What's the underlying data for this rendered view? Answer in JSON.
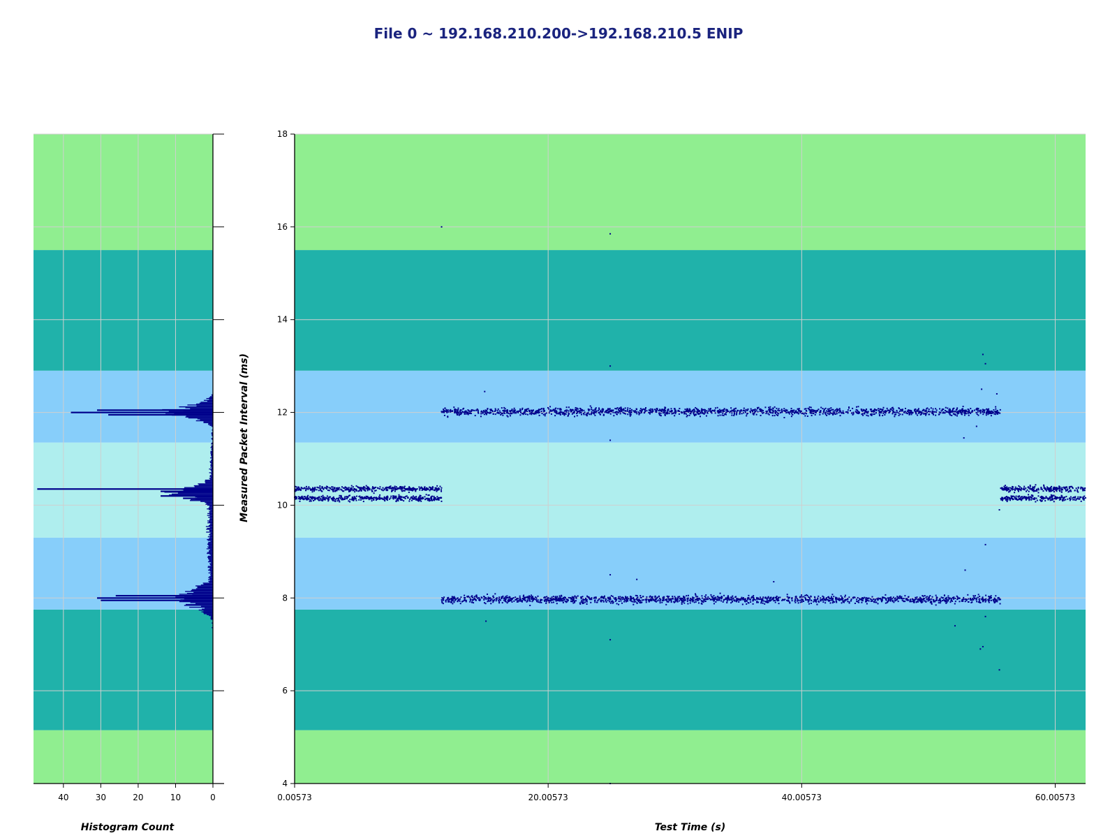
{
  "chart_data": [
    {
      "type": "scatter",
      "title": "File 0 ~ 192.168.210.200->192.168.210.5 ENIP",
      "xlabel": "Test Time (s)",
      "ylabel": "Measured Packet Interval (ms)",
      "xlim": [
        0.00573,
        62.4
      ],
      "ylim": [
        4,
        18
      ],
      "x_ticks": [
        "0.00573",
        "20.00573",
        "40.00573",
        "60.00573"
      ],
      "y_ticks": [
        "4",
        "6",
        "8",
        "10",
        "12",
        "14",
        "16",
        "18"
      ],
      "grid": true,
      "marker_color": "#00008b",
      "background_bands": [
        {
          "from": 4.0,
          "to": 5.15,
          "color": "#90ee90"
        },
        {
          "from": 5.15,
          "to": 7.75,
          "color": "#20b2aa"
        },
        {
          "from": 7.75,
          "to": 9.3,
          "color": "#87cefa"
        },
        {
          "from": 9.3,
          "to": 11.35,
          "color": "#afeeee"
        },
        {
          "from": 11.35,
          "to": 12.9,
          "color": "#87cefa"
        },
        {
          "from": 12.9,
          "to": 15.5,
          "color": "#20b2aa"
        },
        {
          "from": 15.5,
          "to": 18.0,
          "color": "#90ee90"
        }
      ],
      "clusters": [
        {
          "x_range": [
            0.0,
            11.6
          ],
          "y_center": 10.35,
          "spread": 0.05,
          "share": 0.5
        },
        {
          "x_range": [
            0.0,
            11.6
          ],
          "y_center": 10.15,
          "spread": 0.05,
          "share": 0.5
        },
        {
          "x_range": [
            11.6,
            55.7
          ],
          "y_center": 12.02,
          "spread": 0.07,
          "share": 0.5
        },
        {
          "x_range": [
            11.6,
            55.7
          ],
          "y_center": 7.97,
          "spread": 0.07,
          "share": 0.5
        },
        {
          "x_range": [
            55.7,
            62.4
          ],
          "y_center": 10.35,
          "spread": 0.05,
          "share": 0.5
        },
        {
          "x_range": [
            55.7,
            62.4
          ],
          "y_center": 10.15,
          "spread": 0.05,
          "share": 0.5
        }
      ],
      "outliers": [
        {
          "x": 11.6,
          "y": 16.0
        },
        {
          "x": 24.9,
          "y": 15.85
        },
        {
          "x": 24.9,
          "y": 13.0
        },
        {
          "x": 24.9,
          "y": 11.4
        },
        {
          "x": 24.9,
          "y": 8.5
        },
        {
          "x": 24.9,
          "y": 7.1
        },
        {
          "x": 24.9,
          "y": 4.0
        },
        {
          "x": 15.0,
          "y": 12.45
        },
        {
          "x": 15.1,
          "y": 7.5
        },
        {
          "x": 27.0,
          "y": 8.4
        },
        {
          "x": 37.8,
          "y": 8.35
        },
        {
          "x": 52.1,
          "y": 7.4
        },
        {
          "x": 52.8,
          "y": 11.45
        },
        {
          "x": 52.9,
          "y": 8.6
        },
        {
          "x": 54.3,
          "y": 13.25
        },
        {
          "x": 54.5,
          "y": 13.05
        },
        {
          "x": 54.5,
          "y": 9.15
        },
        {
          "x": 54.5,
          "y": 7.6
        },
        {
          "x": 54.1,
          "y": 6.9
        },
        {
          "x": 54.3,
          "y": 6.95
        },
        {
          "x": 55.6,
          "y": 6.45
        },
        {
          "x": 55.6,
          "y": 9.9
        },
        {
          "x": 54.2,
          "y": 12.5
        },
        {
          "x": 55.4,
          "y": 12.4
        },
        {
          "x": 53.8,
          "y": 11.7
        }
      ]
    },
    {
      "type": "histogram",
      "xlabel": "Histogram Count",
      "x_ticks": [
        "40",
        "30",
        "20",
        "10",
        "0"
      ],
      "xlim": [
        48,
        0
      ],
      "ylim": [
        4,
        18
      ],
      "orientation": "horizontal",
      "peaks": [
        {
          "y": 8.0,
          "count": 31
        },
        {
          "y": 7.95,
          "count": 30
        },
        {
          "y": 8.05,
          "count": 26
        },
        {
          "y": 12.0,
          "count": 38
        },
        {
          "y": 12.05,
          "count": 31
        },
        {
          "y": 11.95,
          "count": 28
        },
        {
          "y": 10.35,
          "count": 47
        },
        {
          "y": 10.3,
          "count": 14
        },
        {
          "y": 10.2,
          "count": 14
        },
        {
          "y": 10.15,
          "count": 8
        }
      ]
    }
  ]
}
